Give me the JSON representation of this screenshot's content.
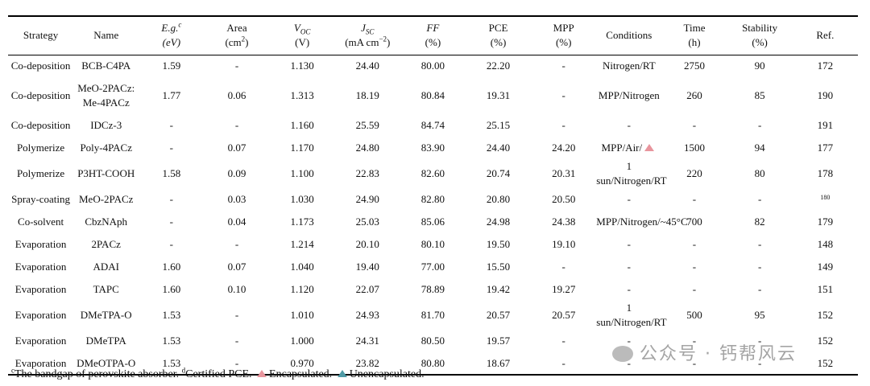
{
  "table": {
    "header": [
      {
        "top": "Strategy"
      },
      {
        "top": "Name"
      },
      {
        "top": "E.g.",
        "top_sup": "c",
        "bottom": "(eV)"
      },
      {
        "top": "Area",
        "bottom": "(cm",
        "bottom_sup": "2",
        "bottom_end": ")"
      },
      {
        "top": "V",
        "top_sub": "OC",
        "bottom": "(V)"
      },
      {
        "top": "J",
        "top_sub": "SC",
        "bottom": "(mA cm",
        "bottom_sup": "−2",
        "bottom_end": ")"
      },
      {
        "top": "FF",
        "bottom": "(%)"
      },
      {
        "top": "PCE",
        "bottom": "(%)"
      },
      {
        "top": "MPP",
        "bottom": "(%)"
      },
      {
        "top": "Conditions"
      },
      {
        "top": "Time",
        "bottom": "(h)"
      },
      {
        "top": "Stability",
        "bottom": "(%)"
      },
      {
        "top": "Ref."
      }
    ],
    "rows": [
      [
        "Co-deposition",
        "BCB-C4PA",
        "1.59",
        "-",
        "1.130",
        "24.40",
        "80.00",
        "22.20",
        "-",
        "Nitrogen/RT",
        "2750",
        "90",
        "172"
      ],
      [
        "Co-deposition",
        "MeO-2PACz: Me-4PACz",
        "1.77",
        "0.06",
        "1.313",
        "18.19",
        "80.84",
        "19.31",
        "-",
        "MPP/Nitrogen",
        "260",
        "85",
        "190"
      ],
      [
        "Co-deposition",
        "IDCz-3",
        "-",
        "-",
        "1.160",
        "25.59",
        "84.74",
        "25.15",
        "-",
        "-",
        "-",
        "-",
        "191"
      ],
      [
        "Polymerize",
        "Poly-4PACz",
        "-",
        "0.07",
        "1.170",
        "24.80",
        "83.90",
        "24.40",
        "24.20",
        "MPP/Air/",
        "1500",
        "94",
        "177"
      ],
      [
        "Polymerize",
        "P3HT-COOH",
        "1.58",
        "0.09",
        "1.100",
        "22.83",
        "82.60",
        "20.74",
        "20.31",
        "1 sun/Nitrogen/RT",
        "220",
        "80",
        "178"
      ],
      [
        "Spray-coating",
        "MeO-2PACz",
        "-",
        "0.03",
        "1.030",
        "24.90",
        "82.80",
        "20.80",
        "20.50",
        "-",
        "-",
        "-",
        "180"
      ],
      [
        "Co-solvent",
        "CbzNAph",
        "-",
        "0.04",
        "1.173",
        "25.03",
        "85.06",
        "24.98",
        "24.38",
        "MPP/Nitrogen/~45°C",
        "700",
        "82",
        "179"
      ],
      [
        "Evaporation",
        "2PACz",
        "-",
        "-",
        "1.214",
        "20.10",
        "80.10",
        "19.50",
        "19.10",
        "-",
        "-",
        "-",
        "148"
      ],
      [
        "Evaporation",
        "ADAI",
        "1.60",
        "0.07",
        "1.040",
        "19.40",
        "77.00",
        "15.50",
        "-",
        "-",
        "-",
        "-",
        "149"
      ],
      [
        "Evaporation",
        "TAPC",
        "1.60",
        "0.10",
        "1.120",
        "22.07",
        "78.89",
        "19.42",
        "19.27",
        "-",
        "-",
        "-",
        "151"
      ],
      [
        "Evaporation",
        "DMeTPA-O",
        "1.53",
        "-",
        "1.010",
        "24.93",
        "81.70",
        "20.57",
        "20.57",
        "1 sun/Nitrogen/RT",
        "500",
        "95",
        "152"
      ],
      [
        "Evaporation",
        "DMeTPA",
        "1.53",
        "-",
        "1.000",
        "24.31",
        "80.50",
        "19.57",
        "-",
        "-",
        "-",
        "-",
        "152"
      ],
      [
        "Evaporation",
        "DMeOTPA-O",
        "1.53",
        "-",
        "0.970",
        "23.82",
        "80.80",
        "18.67",
        "-",
        "-",
        "-",
        "-",
        "152"
      ]
    ]
  },
  "footnotes": [
    {
      "sup": "c",
      "text": "The bandgap of perovskite absorber."
    },
    {
      "sup": "d",
      "text": "Certified PCE."
    },
    {
      "text": "Encapsulated."
    },
    {
      "text": "Unencapsulated."
    }
  ],
  "watermark": "公众号 · 钙帮风云"
}
